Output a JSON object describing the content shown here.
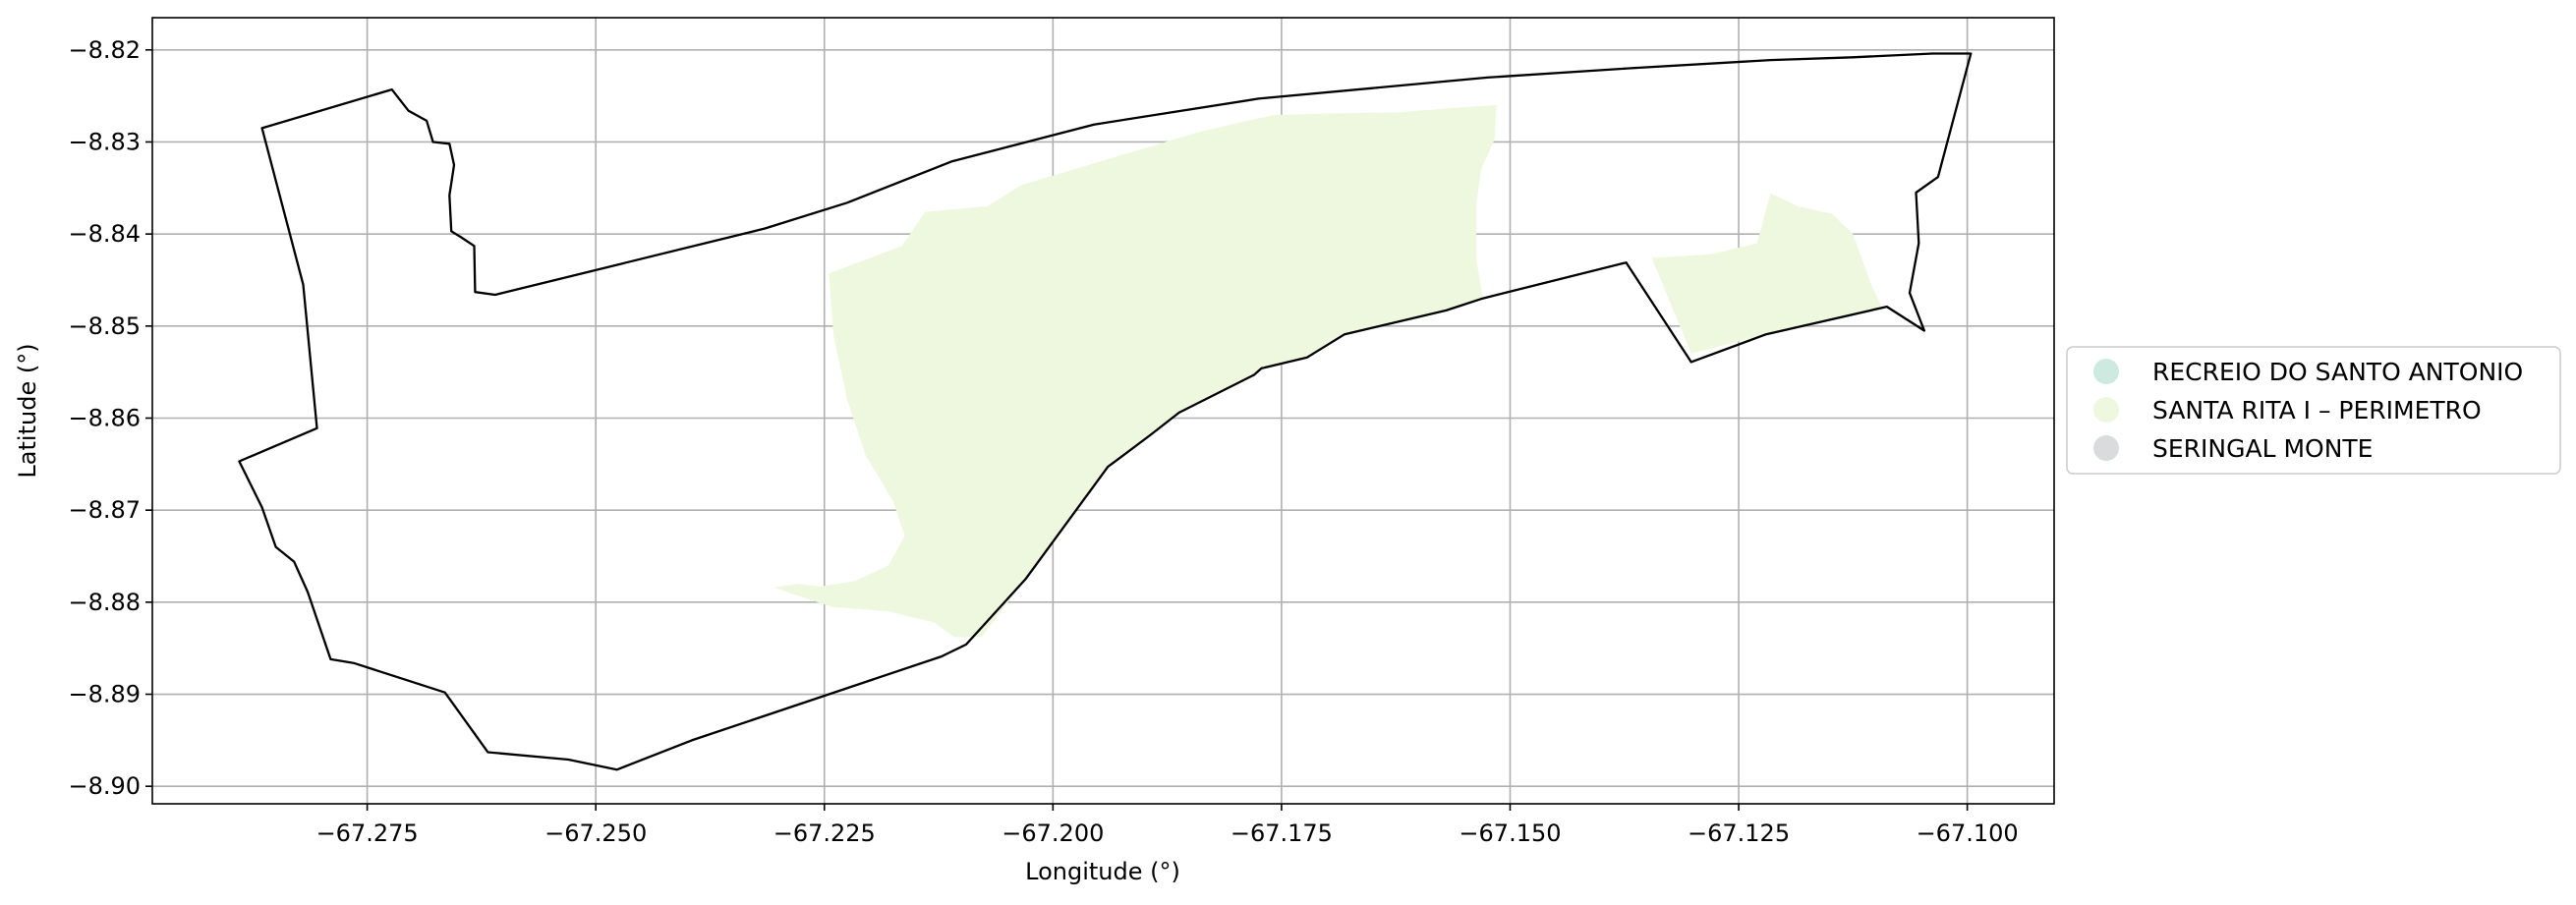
{
  "chart_data": {
    "type": "map",
    "xlabel": "Longitude (°)",
    "ylabel": "Latitude (°)",
    "xlim": [
      -67.2985,
      -67.0905
    ],
    "ylim": [
      -8.9019,
      -8.8165
    ],
    "xticks": [
      -67.275,
      -67.25,
      -67.225,
      -67.2,
      -67.175,
      -67.15,
      -67.125,
      -67.1
    ],
    "xtick_labels": [
      "−67.275",
      "−67.250",
      "−67.225",
      "−67.200",
      "−67.175",
      "−67.150",
      "−67.125",
      "−67.100"
    ],
    "yticks": [
      -8.82,
      -8.83,
      -8.84,
      -8.85,
      -8.86,
      -8.87,
      -8.88,
      -8.89,
      -8.9
    ],
    "ytick_labels": [
      "−8.82",
      "−8.83",
      "−8.84",
      "−8.85",
      "−8.86",
      "−8.87",
      "−8.88",
      "−8.89",
      "−8.90"
    ],
    "grid": true,
    "legend_position": "right",
    "legend": [
      {
        "label": "RECREIO DO SANTO ANTONIO",
        "color": "#cdeae0"
      },
      {
        "label": "SANTA RITA I – PERIMETRO",
        "color": "#eef8df"
      },
      {
        "label": "SERINGAL MONTE",
        "color": "#dadbdd"
      }
    ],
    "boundary": [
      [
        -67.2865,
        -8.8285
      ],
      [
        -67.2723,
        -8.8243
      ],
      [
        -67.2705,
        -8.8266
      ],
      [
        -67.2685,
        -8.8277
      ],
      [
        -67.2678,
        -8.83
      ],
      [
        -67.266,
        -8.8302
      ],
      [
        -67.2655,
        -8.8325
      ],
      [
        -67.266,
        -8.8358
      ],
      [
        -67.2658,
        -8.8397
      ],
      [
        -67.2648,
        -8.8403
      ],
      [
        -67.2633,
        -8.8413
      ],
      [
        -67.2632,
        -8.8463
      ],
      [
        -67.261,
        -8.8466
      ],
      [
        -67.2315,
        -8.8394
      ],
      [
        -67.2225,
        -8.8366
      ],
      [
        -67.211,
        -8.8321
      ],
      [
        -67.1955,
        -8.8281
      ],
      [
        -67.1775,
        -8.8253
      ],
      [
        -67.1525,
        -8.823
      ],
      [
        -67.137,
        -8.822
      ],
      [
        -67.1215,
        -8.8211
      ],
      [
        -67.1125,
        -8.8208
      ],
      [
        -67.1038,
        -8.8204
      ],
      [
        -67.0996,
        -8.8204
      ],
      [
        -67.1032,
        -8.8338
      ],
      [
        -67.1056,
        -8.8355
      ],
      [
        -67.1053,
        -8.841
      ],
      [
        -67.1063,
        -8.8464
      ],
      [
        -67.1047,
        -8.8505
      ],
      [
        -67.1088,
        -8.8479
      ],
      [
        -67.122,
        -8.8509
      ],
      [
        -67.1302,
        -8.8539
      ],
      [
        -67.1373,
        -8.8431
      ],
      [
        -67.153,
        -8.847
      ],
      [
        -67.157,
        -8.8483
      ],
      [
        -67.1681,
        -8.8509
      ],
      [
        -67.1722,
        -8.8534
      ],
      [
        -67.1772,
        -8.8546
      ],
      [
        -67.178,
        -8.8553
      ],
      [
        -67.1862,
        -8.8594
      ],
      [
        -67.1893,
        -8.8618
      ],
      [
        -67.194,
        -8.8653
      ],
      [
        -67.203,
        -8.8775
      ],
      [
        -67.2095,
        -8.8846
      ],
      [
        -67.2122,
        -8.8859
      ],
      [
        -67.2395,
        -8.895
      ],
      [
        -67.2477,
        -8.8982
      ],
      [
        -67.253,
        -8.8971
      ],
      [
        -67.2618,
        -8.8963
      ],
      [
        -67.2665,
        -8.8898
      ],
      [
        -67.2765,
        -8.8866
      ],
      [
        -67.279,
        -8.8862
      ],
      [
        -67.2815,
        -8.8789
      ],
      [
        -67.283,
        -8.8756
      ],
      [
        -67.285,
        -8.874
      ],
      [
        -67.2865,
        -8.8697
      ],
      [
        -67.289,
        -8.8647
      ],
      [
        -67.2805,
        -8.8611
      ],
      [
        -67.282,
        -8.8455
      ],
      [
        -67.2865,
        -8.8285
      ]
    ],
    "santa_rita_area": [
      [
        -67.2245,
        -8.8443
      ],
      [
        -67.2165,
        -8.8413
      ],
      [
        -67.214,
        -8.8376
      ],
      [
        -67.2072,
        -8.837
      ],
      [
        -67.2035,
        -8.8347
      ],
      [
        -67.184,
        -8.8289
      ],
      [
        -67.176,
        -8.8271
      ],
      [
        -67.1698,
        -8.8269
      ],
      [
        -67.1625,
        -8.8268
      ],
      [
        -67.1548,
        -8.8262
      ],
      [
        -67.1515,
        -8.826
      ],
      [
        -67.1517,
        -8.8297
      ],
      [
        -67.1532,
        -8.8331
      ],
      [
        -67.1537,
        -8.8368
      ],
      [
        -67.1537,
        -8.8427
      ],
      [
        -67.153,
        -8.847
      ],
      [
        -67.157,
        -8.8483
      ],
      [
        -67.1681,
        -8.8509
      ],
      [
        -67.1722,
        -8.8534
      ],
      [
        -67.1772,
        -8.8546
      ],
      [
        -67.178,
        -8.8553
      ],
      [
        -67.1862,
        -8.8594
      ],
      [
        -67.1893,
        -8.8618
      ],
      [
        -67.194,
        -8.8653
      ],
      [
        -67.203,
        -8.8775
      ],
      [
        -67.2078,
        -8.8838
      ],
      [
        -67.2108,
        -8.8838
      ],
      [
        -67.213,
        -8.8822
      ],
      [
        -67.218,
        -8.881
      ],
      [
        -67.2242,
        -8.8805
      ],
      [
        -67.2282,
        -8.8792
      ],
      [
        -67.2305,
        -8.8784
      ],
      [
        -67.2279,
        -8.878
      ],
      [
        -67.2255,
        -8.8783
      ],
      [
        -67.2216,
        -8.8777
      ],
      [
        -67.218,
        -8.876
      ],
      [
        -67.2162,
        -8.8728
      ],
      [
        -67.2175,
        -8.869
      ],
      [
        -67.2205,
        -8.864
      ],
      [
        -67.2225,
        -8.858
      ],
      [
        -67.224,
        -8.851
      ],
      [
        -67.2245,
        -8.8443
      ]
    ],
    "santa_rita_area_2": [
      [
        -67.1345,
        -8.8426
      ],
      [
        -67.128,
        -8.8422
      ],
      [
        -67.123,
        -8.841
      ],
      [
        -67.1215,
        -8.8356
      ],
      [
        -67.1185,
        -8.837
      ],
      [
        -67.1148,
        -8.8378
      ],
      [
        -67.1125,
        -8.84
      ],
      [
        -67.1105,
        -8.8455
      ],
      [
        -67.1092,
        -8.8482
      ],
      [
        -67.122,
        -8.8509
      ],
      [
        -67.1302,
        -8.853
      ],
      [
        -67.1345,
        -8.8426
      ]
    ]
  }
}
